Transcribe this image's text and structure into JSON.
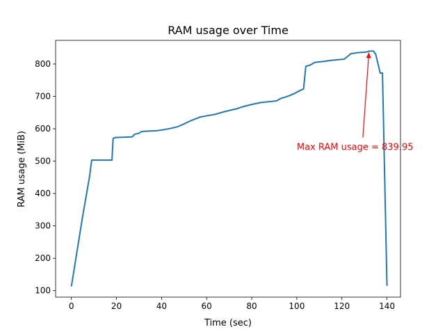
{
  "chart_data": {
    "type": "line",
    "title": "RAM usage over Time",
    "xlabel": "Time (sec)",
    "ylabel": "RAM usage (MiB)",
    "xlim": [
      -7,
      146
    ],
    "ylim": [
      80,
      873
    ],
    "xticks": [
      0,
      20,
      40,
      60,
      80,
      100,
      120,
      140
    ],
    "yticks": [
      100,
      200,
      300,
      400,
      500,
      600,
      700,
      800
    ],
    "grid": false,
    "legend": "none",
    "series": [
      {
        "color": "#1f77b4",
        "x": [
          0,
          2,
          5,
          8,
          9,
          14,
          18,
          18.5,
          19.5,
          24,
          27,
          28,
          30,
          31,
          32,
          35,
          38,
          40,
          44,
          47,
          50,
          53,
          57,
          61,
          64,
          68,
          71,
          73,
          76,
          80,
          84,
          88,
          91,
          93,
          95,
          97,
          99,
          100,
          102,
          103,
          104,
          105,
          106,
          108,
          112,
          115,
          118,
          121,
          123,
          124,
          127,
          129,
          131,
          132,
          134,
          135,
          137,
          138,
          140
        ],
        "values": [
          113,
          200,
          330,
          450,
          503,
          503,
          503,
          570,
          573,
          574,
          575,
          583,
          586,
          591,
          592,
          593,
          594,
          596,
          601,
          606,
          615,
          625,
          636,
          641,
          645,
          653,
          658,
          661,
          668,
          675,
          681,
          684,
          686,
          694,
          698,
          703,
          709,
          713,
          720,
          723,
          793,
          795,
          797,
          805,
          808,
          811,
          813,
          815,
          826,
          832,
          835,
          836,
          837,
          839.95,
          839.95,
          830,
          772,
          772,
          115
        ]
      }
    ],
    "annotation": {
      "text": "Max RAM usage = 839.95",
      "color": "#ff0000",
      "point": [
        132,
        839.95
      ],
      "text_at": [
        100,
        543
      ]
    }
  }
}
